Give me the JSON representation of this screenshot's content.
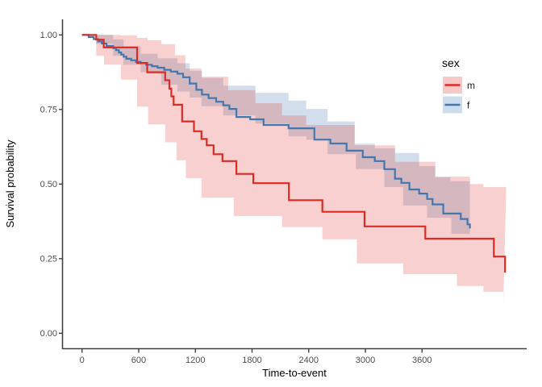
{
  "figure": {
    "background": "#ffffff"
  },
  "axes": {
    "x": {
      "title": "Time-to-event",
      "ticks": [
        {
          "v": 0,
          "label": "0"
        },
        {
          "v": 600,
          "label": "600"
        },
        {
          "v": 1200,
          "label": "1200"
        },
        {
          "v": 1800,
          "label": "1800"
        },
        {
          "v": 2400,
          "label": "2400"
        },
        {
          "v": 3000,
          "label": "3000"
        },
        {
          "v": 3600,
          "label": "3600"
        }
      ]
    },
    "y": {
      "title": "Survival probability",
      "ticks": [
        {
          "v": 1.0,
          "label": "1.00"
        },
        {
          "v": 0.75,
          "label": "0.75"
        },
        {
          "v": 0.5,
          "label": "0.50"
        },
        {
          "v": 0.25,
          "label": "0.25"
        },
        {
          "v": 0.0,
          "label": "0.00"
        }
      ]
    },
    "axis_line_color": "#404040",
    "tick_label_color": "#4d4d4d"
  },
  "legend": {
    "title": "sex",
    "items": [
      {
        "label": "m",
        "line_color": "#dc2a25",
        "key_fill": "#f6c8c8"
      },
      {
        "label": "f",
        "line_color": "#4377ae",
        "key_fill": "#cdddec"
      }
    ]
  },
  "chart_data": {
    "type": "line",
    "subtype": "kaplan-meier-step-with-confidence-bands",
    "title": "",
    "xlabel": "Time-to-event",
    "ylabel": "Survival probability",
    "xlim": [
      -210,
      4700
    ],
    "ylim": [
      -0.05,
      1.05
    ],
    "grid": false,
    "legend_position": "right",
    "series": [
      {
        "name": "f",
        "color": "#4377ae",
        "band_fill": "#4377ae",
        "band_opacity": 0.24,
        "steps": [
          [
            0,
            1.0
          ],
          [
            70,
            0.993
          ],
          [
            125,
            0.986
          ],
          [
            170,
            0.978
          ],
          [
            210,
            0.971
          ],
          [
            260,
            0.963
          ],
          [
            330,
            0.956
          ],
          [
            360,
            0.949
          ],
          [
            390,
            0.941
          ],
          [
            415,
            0.934
          ],
          [
            440,
            0.927
          ],
          [
            470,
            0.92
          ],
          [
            520,
            0.915
          ],
          [
            570,
            0.91
          ],
          [
            620,
            0.905
          ],
          [
            680,
            0.9
          ],
          [
            740,
            0.895
          ],
          [
            800,
            0.89
          ],
          [
            870,
            0.883
          ],
          [
            940,
            0.877
          ],
          [
            1010,
            0.87
          ],
          [
            1070,
            0.858
          ],
          [
            1140,
            0.837
          ],
          [
            1210,
            0.816
          ],
          [
            1270,
            0.8
          ],
          [
            1340,
            0.788
          ],
          [
            1420,
            0.776
          ],
          [
            1495,
            0.764
          ],
          [
            1560,
            0.752
          ],
          [
            1634,
            0.725
          ],
          [
            1780,
            0.717
          ],
          [
            1922,
            0.698
          ],
          [
            2187,
            0.687
          ],
          [
            2460,
            0.649
          ],
          [
            2630,
            0.636
          ],
          [
            2801,
            0.612
          ],
          [
            2972,
            0.59
          ],
          [
            3100,
            0.577
          ],
          [
            3200,
            0.55
          ],
          [
            3313,
            0.518
          ],
          [
            3381,
            0.504
          ],
          [
            3466,
            0.482
          ],
          [
            3569,
            0.468
          ],
          [
            3654,
            0.45
          ],
          [
            3711,
            0.432
          ],
          [
            3825,
            0.401
          ],
          [
            4010,
            0.383
          ],
          [
            4081,
            0.365
          ],
          [
            4106,
            0.351
          ]
        ],
        "band_upper": [
          [
            0,
            1.0
          ],
          [
            150,
            1.0
          ],
          [
            330,
            0.985
          ],
          [
            440,
            0.962
          ],
          [
            620,
            0.937
          ],
          [
            800,
            0.922
          ],
          [
            1010,
            0.905
          ],
          [
            1140,
            0.88
          ],
          [
            1270,
            0.856
          ],
          [
            1495,
            0.83
          ],
          [
            1836,
            0.806
          ],
          [
            2187,
            0.78
          ],
          [
            2374,
            0.752
          ],
          [
            2600,
            0.71
          ],
          [
            2887,
            0.635
          ],
          [
            3100,
            0.62
          ],
          [
            3313,
            0.604
          ],
          [
            3569,
            0.56
          ],
          [
            3740,
            0.523
          ],
          [
            3900,
            0.51
          ],
          [
            4106,
            0.477
          ]
        ],
        "band_lower": [
          [
            0,
            1.0
          ],
          [
            150,
            0.97
          ],
          [
            330,
            0.93
          ],
          [
            440,
            0.9
          ],
          [
            620,
            0.875
          ],
          [
            839,
            0.833
          ],
          [
            1010,
            0.81
          ],
          [
            1140,
            0.79
          ],
          [
            1265,
            0.761
          ],
          [
            1495,
            0.73
          ],
          [
            1836,
            0.703
          ],
          [
            2187,
            0.66
          ],
          [
            2374,
            0.649
          ],
          [
            2600,
            0.6
          ],
          [
            2900,
            0.55
          ],
          [
            3200,
            0.49
          ],
          [
            3400,
            0.428
          ],
          [
            3654,
            0.387
          ],
          [
            3910,
            0.333
          ],
          [
            4106,
            0.293
          ]
        ]
      },
      {
        "name": "m",
        "color": "#dc2a25",
        "band_fill": "#e23b36",
        "band_opacity": 0.24,
        "steps": [
          [
            0,
            1.0
          ],
          [
            150,
            0.984
          ],
          [
            230,
            0.958
          ],
          [
            583,
            0.906
          ],
          [
            690,
            0.875
          ],
          [
            880,
            0.848
          ],
          [
            925,
            0.82
          ],
          [
            945,
            0.794
          ],
          [
            970,
            0.766
          ],
          [
            1060,
            0.71
          ],
          [
            1185,
            0.677
          ],
          [
            1265,
            0.651
          ],
          [
            1320,
            0.63
          ],
          [
            1393,
            0.6
          ],
          [
            1487,
            0.577
          ],
          [
            1634,
            0.534
          ],
          [
            1814,
            0.503
          ],
          [
            2190,
            0.446
          ],
          [
            2545,
            0.407
          ],
          [
            2991,
            0.358
          ],
          [
            3634,
            0.317
          ],
          [
            4360,
            0.257
          ],
          [
            4479,
            0.203
          ]
        ],
        "band_upper": [
          [
            0,
            1.0
          ],
          [
            412,
            0.998
          ],
          [
            583,
            0.99
          ],
          [
            694,
            0.982
          ],
          [
            839,
            0.969
          ],
          [
            984,
            0.932
          ],
          [
            1095,
            0.887
          ],
          [
            1265,
            0.86
          ],
          [
            1547,
            0.815
          ],
          [
            1836,
            0.771
          ],
          [
            2118,
            0.73
          ],
          [
            2374,
            0.698
          ],
          [
            2887,
            0.63
          ],
          [
            3313,
            0.575
          ],
          [
            3740,
            0.525
          ],
          [
            4106,
            0.5
          ],
          [
            4250,
            0.49
          ],
          [
            4490,
            0.47
          ]
        ],
        "band_lower": [
          [
            0,
            1.0
          ],
          [
            150,
            0.93
          ],
          [
            233,
            0.9
          ],
          [
            412,
            0.85
          ],
          [
            583,
            0.76
          ],
          [
            700,
            0.7
          ],
          [
            880,
            0.64
          ],
          [
            1000,
            0.58
          ],
          [
            1100,
            0.52
          ],
          [
            1265,
            0.455
          ],
          [
            1606,
            0.393
          ],
          [
            2118,
            0.356
          ],
          [
            2545,
            0.315
          ],
          [
            2910,
            0.234
          ],
          [
            3400,
            0.198
          ],
          [
            3970,
            0.158
          ],
          [
            4250,
            0.139
          ],
          [
            4460,
            0.099
          ]
        ]
      }
    ]
  }
}
